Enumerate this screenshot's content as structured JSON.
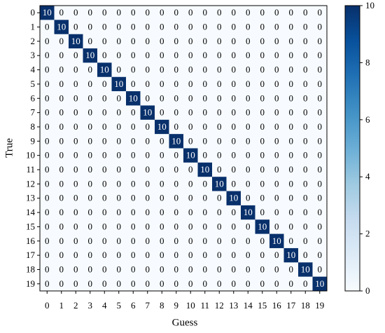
{
  "chart_data": {
    "type": "heatmap",
    "xlabel": "Guess",
    "ylabel": "True",
    "x": [
      0,
      1,
      2,
      3,
      4,
      5,
      6,
      7,
      8,
      9,
      10,
      11,
      12,
      13,
      14,
      15,
      16,
      17,
      18,
      19
    ],
    "y": [
      0,
      1,
      2,
      3,
      4,
      5,
      6,
      7,
      8,
      9,
      10,
      11,
      12,
      13,
      14,
      15,
      16,
      17,
      18,
      19
    ],
    "colormap": "Blues",
    "zlim": [
      0,
      10
    ],
    "zticks": [
      0,
      2,
      4,
      6,
      8,
      10
    ],
    "values": [
      [
        10,
        0,
        0,
        0,
        0,
        0,
        0,
        0,
        0,
        0,
        0,
        0,
        0,
        0,
        0,
        0,
        0,
        0,
        0,
        0
      ],
      [
        0,
        10,
        0,
        0,
        0,
        0,
        0,
        0,
        0,
        0,
        0,
        0,
        0,
        0,
        0,
        0,
        0,
        0,
        0,
        0
      ],
      [
        0,
        0,
        10,
        0,
        0,
        0,
        0,
        0,
        0,
        0,
        0,
        0,
        0,
        0,
        0,
        0,
        0,
        0,
        0,
        0
      ],
      [
        0,
        0,
        0,
        10,
        0,
        0,
        0,
        0,
        0,
        0,
        0,
        0,
        0,
        0,
        0,
        0,
        0,
        0,
        0,
        0
      ],
      [
        0,
        0,
        0,
        0,
        10,
        0,
        0,
        0,
        0,
        0,
        0,
        0,
        0,
        0,
        0,
        0,
        0,
        0,
        0,
        0
      ],
      [
        0,
        0,
        0,
        0,
        0,
        10,
        0,
        0,
        0,
        0,
        0,
        0,
        0,
        0,
        0,
        0,
        0,
        0,
        0,
        0
      ],
      [
        0,
        0,
        0,
        0,
        0,
        0,
        10,
        0,
        0,
        0,
        0,
        0,
        0,
        0,
        0,
        0,
        0,
        0,
        0,
        0
      ],
      [
        0,
        0,
        0,
        0,
        0,
        0,
        0,
        10,
        0,
        0,
        0,
        0,
        0,
        0,
        0,
        0,
        0,
        0,
        0,
        0
      ],
      [
        0,
        0,
        0,
        0,
        0,
        0,
        0,
        0,
        10,
        0,
        0,
        0,
        0,
        0,
        0,
        0,
        0,
        0,
        0,
        0
      ],
      [
        0,
        0,
        0,
        0,
        0,
        0,
        0,
        0,
        0,
        10,
        0,
        0,
        0,
        0,
        0,
        0,
        0,
        0,
        0,
        0
      ],
      [
        0,
        0,
        0,
        0,
        0,
        0,
        0,
        0,
        0,
        0,
        10,
        0,
        0,
        0,
        0,
        0,
        0,
        0,
        0,
        0
      ],
      [
        0,
        0,
        0,
        0,
        0,
        0,
        0,
        0,
        0,
        0,
        0,
        10,
        0,
        0,
        0,
        0,
        0,
        0,
        0,
        0
      ],
      [
        0,
        0,
        0,
        0,
        0,
        0,
        0,
        0,
        0,
        0,
        0,
        0,
        10,
        0,
        0,
        0,
        0,
        0,
        0,
        0
      ],
      [
        0,
        0,
        0,
        0,
        0,
        0,
        0,
        0,
        0,
        0,
        0,
        0,
        0,
        10,
        0,
        0,
        0,
        0,
        0,
        0
      ],
      [
        0,
        0,
        0,
        0,
        0,
        0,
        0,
        0,
        0,
        0,
        0,
        0,
        0,
        0,
        10,
        0,
        0,
        0,
        0,
        0
      ],
      [
        0,
        0,
        0,
        0,
        0,
        0,
        0,
        0,
        0,
        0,
        0,
        0,
        0,
        0,
        0,
        10,
        0,
        0,
        0,
        0
      ],
      [
        0,
        0,
        0,
        0,
        0,
        0,
        0,
        0,
        0,
        0,
        0,
        0,
        0,
        0,
        0,
        0,
        10,
        0,
        0,
        0
      ],
      [
        0,
        0,
        0,
        0,
        0,
        0,
        0,
        0,
        0,
        0,
        0,
        0,
        0,
        0,
        0,
        0,
        0,
        10,
        0,
        0
      ],
      [
        0,
        0,
        0,
        0,
        0,
        0,
        0,
        0,
        0,
        0,
        0,
        0,
        0,
        0,
        0,
        0,
        0,
        0,
        10,
        0
      ],
      [
        0,
        0,
        0,
        0,
        0,
        0,
        0,
        0,
        0,
        0,
        0,
        0,
        0,
        0,
        0,
        0,
        0,
        0,
        0,
        10
      ]
    ]
  }
}
